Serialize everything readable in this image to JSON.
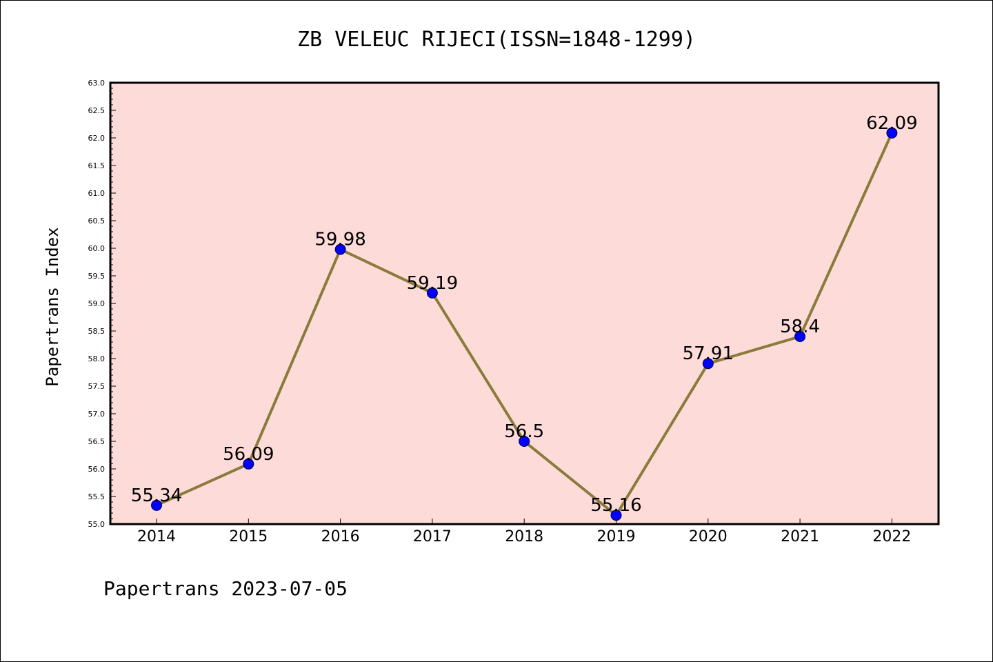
{
  "title": "ZB VELEUC RIJECI(ISSN=1848-1299)",
  "footer": "Papertrans 2023-07-05",
  "colors": {
    "plot_background": "#FDDBD9",
    "line": "#8B7B3A",
    "marker": "#0000FF",
    "axis": "#000000"
  },
  "chart_data": {
    "type": "line",
    "title": "ZB VELEUC RIJECI(ISSN=1848-1299)",
    "xlabel": "",
    "ylabel": "Papertrans Index",
    "categories": [
      "2014",
      "2015",
      "2016",
      "2017",
      "2018",
      "2019",
      "2020",
      "2021",
      "2022"
    ],
    "series": [
      {
        "values": [
          55.34,
          56.09,
          59.98,
          59.19,
          56.5,
          55.16,
          57.91,
          58.4,
          62.09
        ],
        "labels": [
          "55.34",
          "56.09",
          "59.98",
          "59.19",
          "56.5",
          "55.16",
          "57.91",
          "58.4",
          "62.09"
        ]
      }
    ],
    "ylim": [
      55.0,
      63.0
    ],
    "yticks": [
      "55.0",
      "55.5",
      "56.0",
      "56.5",
      "57.0",
      "57.5",
      "58.0",
      "58.5",
      "59.0",
      "59.5",
      "60.0",
      "60.5",
      "61.0",
      "61.5",
      "62.0",
      "62.5",
      "63.0"
    ],
    "grid": false,
    "legend": "none"
  }
}
